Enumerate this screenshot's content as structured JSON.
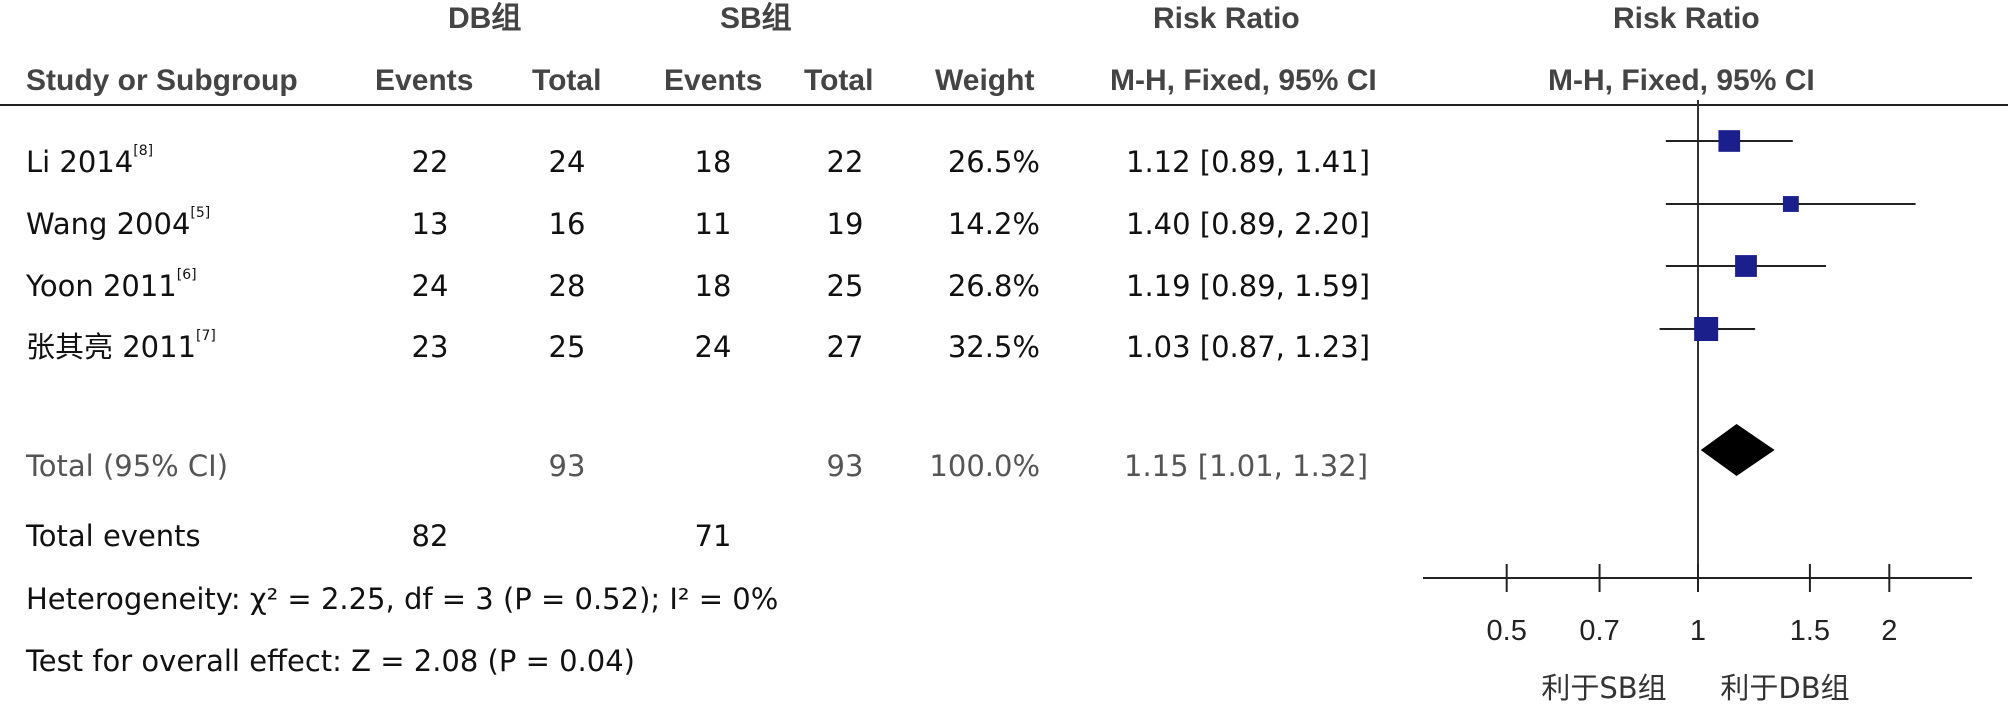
{
  "header": {
    "group1": "DB组",
    "group2": "SB组",
    "rr_top": "Risk Ratio",
    "plot_top": "Risk Ratio",
    "study_col": "Study or Subgroup",
    "events1": "Events",
    "total1": "Total",
    "events2": "Events",
    "total2": "Total",
    "weight": "Weight",
    "rr_sub": "M-H, Fixed, 95% CI",
    "plot_sub": "M-H, Fixed, 95% CI"
  },
  "studies": [
    {
      "name": "Li 2014",
      "ref": "[8]",
      "e1": "22",
      "t1": "24",
      "e2": "18",
      "t2": "22",
      "weight": "26.5%",
      "rr": "1.12",
      "ci": "[0.89, 1.41]"
    },
    {
      "name": "Wang 2004",
      "ref": "[5]",
      "e1": "13",
      "t1": "16",
      "e2": "11",
      "t2": "19",
      "weight": "14.2%",
      "rr": "1.40",
      "ci": "[0.89, 2.20]"
    },
    {
      "name": "Yoon 2011",
      "ref": "[6]",
      "e1": "24",
      "t1": "28",
      "e2": "18",
      "t2": "25",
      "weight": "26.8%",
      "rr": "1.19",
      "ci": "[0.89, 1.59]"
    },
    {
      "name": "张其亮 2011",
      "ref": "[7]",
      "e1": "23",
      "t1": "25",
      "e2": "24",
      "t2": "27",
      "weight": "32.5%",
      "rr": "1.03",
      "ci": "[0.87, 1.23]"
    }
  ],
  "total": {
    "label": "Total (95% CI)",
    "t1": "93",
    "t2": "93",
    "weight": "100.0%",
    "rr": "1.15",
    "ci": "[1.01, 1.32]"
  },
  "total_events": {
    "label": "Total events",
    "e1": "82",
    "e2": "71"
  },
  "heterogeneity": "Heterogeneity: χ² = 2.25, df = 3 (P = 0.52); I² = 0%",
  "overall_effect": "Test for overall effect: Z = 2.08 (P = 0.04)",
  "favors": {
    "left": "利于SB组",
    "right": "利于DB组"
  },
  "chart_data": {
    "type": "scatter",
    "title": "Risk Ratio",
    "subtitle": "M-H, Fixed, 95% CI",
    "scale": "log",
    "xlim": [
      0.4,
      2.8
    ],
    "reference_line": 1,
    "x_ticks": [
      0.5,
      0.7,
      1,
      1.5,
      2
    ],
    "x_tick_labels": [
      "0.5",
      "0.7",
      "1",
      "1.5",
      "2"
    ],
    "studies": [
      {
        "name": "Li 2014",
        "rr": 1.12,
        "lower": 0.89,
        "upper": 1.41,
        "weight": 26.5
      },
      {
        "name": "Wang 2004",
        "rr": 1.4,
        "lower": 0.89,
        "upper": 2.2,
        "weight": 14.2
      },
      {
        "name": "Yoon 2011",
        "rr": 1.19,
        "lower": 0.89,
        "upper": 1.59,
        "weight": 26.8
      },
      {
        "name": "张其亮 2011",
        "rr": 1.03,
        "lower": 0.87,
        "upper": 1.23,
        "weight": 32.5
      }
    ],
    "pooled": {
      "rr": 1.15,
      "lower": 1.01,
      "upper": 1.32
    },
    "marker_color": "#1a1f8c",
    "pooled_color": "#000000",
    "favors_left": "利于SB组",
    "favors_right": "利于DB组"
  }
}
